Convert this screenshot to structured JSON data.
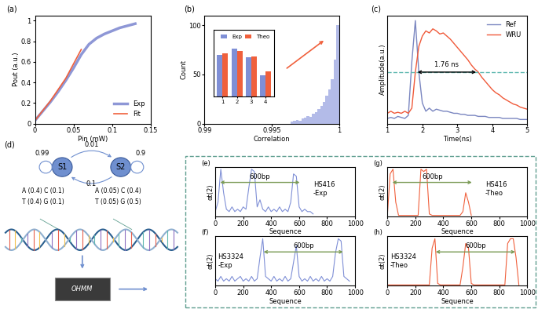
{
  "chart_data": [
    {
      "panel": "(a)",
      "type": "line",
      "xlabel": "Pin (mW)",
      "ylabel": "Pout (a.u.)",
      "xlim": [
        0,
        0.15
      ],
      "xticks": [
        0,
        0.05,
        0.1,
        0.15
      ],
      "ylim": [
        0,
        1.05
      ],
      "yticks": [
        0,
        0.2,
        0.4,
        0.6,
        0.8,
        1
      ],
      "legend": "lower right",
      "series": [
        {
          "name": "Exp",
          "color": "#8e97d6",
          "x": [
            0,
            0.01,
            0.02,
            0.03,
            0.04,
            0.05,
            0.06,
            0.07,
            0.08,
            0.09,
            0.1,
            0.11,
            0.12,
            0.13
          ],
          "values": [
            0.03,
            0.12,
            0.21,
            0.31,
            0.42,
            0.54,
            0.67,
            0.77,
            0.83,
            0.87,
            0.9,
            0.93,
            0.95,
            0.97
          ]
        },
        {
          "name": "Fit",
          "color": "#f0603c",
          "x": [
            0,
            0.02,
            0.04,
            0.06
          ],
          "values": [
            0.03,
            0.22,
            0.44,
            0.72
          ]
        }
      ]
    },
    {
      "panel": "(b)",
      "type": "histogram",
      "xlabel": "Correlation",
      "ylabel": "Count",
      "color": "#b3bbe8",
      "xlim": [
        0.99,
        1
      ],
      "xticks": [
        0.99,
        0.995,
        1
      ],
      "ylim": [
        0,
        110
      ],
      "yticks": [
        0,
        50,
        100
      ],
      "bins": [
        0.9964,
        0.9966,
        0.9968,
        0.997,
        0.9972,
        0.9974,
        0.9976,
        0.9978,
        0.998,
        0.9982,
        0.9984,
        0.9986,
        0.9988,
        0.999,
        0.9992,
        0.9994,
        0.9996,
        0.9998,
        1.0
      ],
      "counts": [
        2,
        3,
        4,
        3,
        5,
        6,
        8,
        7,
        10,
        12,
        15,
        18,
        22,
        28,
        35,
        45,
        65,
        100
      ],
      "inset": {
        "type": "bar",
        "categories": [
          "1",
          "2",
          "3",
          "4"
        ],
        "ylim": [
          0,
          1
        ],
        "tick_labels": "x",
        "legend": "upper right",
        "series": [
          {
            "name": "Exp",
            "color": "#7f8fd6",
            "values": [
              0.62,
              0.72,
              0.59,
              0.32
            ]
          },
          {
            "name": "Theo",
            "color": "#f0603c",
            "values": [
              0.65,
              0.68,
              0.6,
              0.38
            ]
          }
        ]
      }
    },
    {
      "panel": "(c)",
      "type": "line",
      "xlabel": "Time(ns)",
      "ylabel": "Amplitude(a.u.)",
      "xlim": [
        1,
        5
      ],
      "xticks": [
        1,
        2,
        3,
        4,
        5
      ],
      "ylim": [
        0,
        1.05
      ],
      "tick_labels": "x",
      "legend": "upper right",
      "threshold": 0.5,
      "threshold_color": "#5fb8b0",
      "annotation": "1.76 ns",
      "x": [
        1.0,
        1.1,
        1.2,
        1.3,
        1.4,
        1.5,
        1.6,
        1.7,
        1.8,
        1.9,
        2.0,
        2.1,
        2.2,
        2.3,
        2.4,
        2.5,
        2.6,
        2.7,
        2.8,
        2.9,
        3.0,
        3.1,
        3.2,
        3.3,
        3.4,
        3.5,
        3.6,
        3.7,
        3.8,
        3.9,
        4.0,
        4.1,
        4.2,
        4.3,
        4.4,
        4.5,
        4.6,
        4.7,
        4.8,
        4.9,
        5.0
      ],
      "series": [
        {
          "name": "Ref",
          "color": "#7a86c0",
          "values": [
            0.05,
            0.06,
            0.05,
            0.07,
            0.06,
            0.05,
            0.08,
            0.6,
            1.0,
            0.5,
            0.2,
            0.12,
            0.15,
            0.12,
            0.14,
            0.13,
            0.12,
            0.12,
            0.11,
            0.1,
            0.1,
            0.09,
            0.09,
            0.08,
            0.08,
            0.08,
            0.07,
            0.07,
            0.07,
            0.06,
            0.06,
            0.06,
            0.06,
            0.05,
            0.05,
            0.05,
            0.05,
            0.05,
            0.04,
            0.04,
            0.04
          ]
        },
        {
          "name": "WRU",
          "color": "#f05a3a",
          "values": [
            0.1,
            0.12,
            0.1,
            0.11,
            0.1,
            0.12,
            0.1,
            0.15,
            0.5,
            0.75,
            0.85,
            0.9,
            0.88,
            0.92,
            0.9,
            0.87,
            0.88,
            0.85,
            0.82,
            0.78,
            0.74,
            0.7,
            0.66,
            0.62,
            0.57,
            0.53,
            0.5,
            0.45,
            0.41,
            0.37,
            0.33,
            0.3,
            0.28,
            0.25,
            0.23,
            0.21,
            0.19,
            0.18,
            0.16,
            0.15,
            0.14
          ]
        }
      ]
    },
    {
      "panel": "(e)",
      "type": "line",
      "label": "HS416\n-Exp",
      "span_label": "600bp",
      "span": [
        20,
        620
      ],
      "color": "#7f8fd6",
      "xlabel": "Sequence",
      "ylabel": "αt(2)",
      "xlim": [
        0,
        1000
      ],
      "xticks": [
        0,
        200,
        400,
        600,
        800,
        1000
      ],
      "ylim": [
        0,
        1.05
      ],
      "tick_labels": "x",
      "x": [
        0,
        20,
        40,
        60,
        80,
        100,
        120,
        140,
        160,
        180,
        200,
        220,
        240,
        260,
        280,
        300,
        320,
        340,
        360,
        380,
        400,
        420,
        440,
        460,
        480,
        500,
        520,
        540,
        560,
        580,
        600,
        620,
        640,
        660,
        680,
        700
      ],
      "values": [
        0.1,
        0.3,
        1.0,
        0.5,
        0.15,
        0.1,
        0.2,
        0.1,
        0.15,
        0.1,
        0.2,
        0.15,
        0.6,
        1.0,
        0.95,
        0.2,
        0.35,
        0.15,
        0.1,
        0.2,
        0.1,
        0.15,
        0.1,
        0.2,
        0.1,
        0.15,
        0.1,
        0.3,
        0.9,
        0.85,
        0.2,
        0.1,
        0.15,
        0.1,
        0.1,
        0.05
      ]
    },
    {
      "panel": "(f)",
      "type": "line",
      "label": "HS3324\n-Exp",
      "span_label": "600bp",
      "span": [
        330,
        930
      ],
      "color": "#7f8fd6",
      "xlabel": "Sequence",
      "ylabel": "αt(2)",
      "xlim": [
        0,
        1000
      ],
      "xticks": [
        0,
        200,
        400,
        600,
        800,
        1000
      ],
      "ylim": [
        0,
        1.05
      ],
      "tick_labels": "x",
      "x": [
        0,
        20,
        40,
        60,
        80,
        100,
        120,
        140,
        160,
        180,
        200,
        220,
        240,
        260,
        280,
        300,
        320,
        340,
        360,
        380,
        400,
        420,
        440,
        460,
        480,
        500,
        520,
        540,
        560,
        580,
        600,
        620,
        640,
        660,
        680,
        700,
        720,
        740,
        760,
        780,
        800,
        820,
        840,
        860,
        880,
        900,
        920,
        940,
        960
      ],
      "values": [
        0.15,
        0.1,
        0.2,
        0.1,
        0.15,
        0.1,
        0.2,
        0.1,
        0.15,
        0.2,
        0.1,
        0.15,
        0.1,
        0.2,
        0.1,
        0.15,
        0.6,
        1.0,
        0.2,
        0.15,
        0.1,
        0.2,
        0.1,
        0.15,
        0.1,
        0.2,
        0.1,
        0.15,
        0.5,
        0.85,
        0.2,
        0.1,
        0.15,
        0.1,
        0.2,
        0.1,
        0.15,
        0.1,
        0.2,
        0.1,
        0.15,
        0.1,
        0.2,
        0.7,
        1.0,
        0.95,
        0.2,
        0.15,
        0.1
      ]
    },
    {
      "panel": "(g)",
      "type": "line",
      "label": "HS416\n-Theo",
      "span_label": "600bp",
      "span": [
        20,
        620
      ],
      "color": "#f0603c",
      "xlabel": "Sequence",
      "ylabel": "αt(2)",
      "xlim": [
        0,
        1000
      ],
      "xticks": [
        0,
        200,
        400,
        600,
        800,
        1000
      ],
      "ylim": [
        0,
        1.05
      ],
      "tick_labels": "x",
      "x": [
        0,
        20,
        40,
        60,
        80,
        100,
        120,
        140,
        160,
        180,
        200,
        220,
        240,
        260,
        280,
        300,
        320,
        340,
        360,
        380,
        400,
        420,
        440,
        460,
        480,
        500,
        520,
        540,
        560,
        580,
        600
      ],
      "values": [
        0.02,
        0.9,
        1.0,
        0.3,
        0.02,
        0.02,
        0.02,
        0.02,
        0.02,
        0.02,
        0.02,
        0.02,
        1.0,
        0.95,
        1.0,
        0.05,
        0.02,
        0.02,
        0.02,
        0.02,
        0.02,
        0.02,
        0.02,
        0.02,
        0.02,
        0.02,
        0.02,
        0.1,
        0.5,
        0.3,
        0.02
      ]
    },
    {
      "panel": "(h)",
      "type": "line",
      "label": "HS3324\n-Theo",
      "span_label": "600bp",
      "span": [
        330,
        930
      ],
      "color": "#f0603c",
      "xlabel": "Sequence",
      "ylabel": "αt(2)",
      "xlim": [
        0,
        1000
      ],
      "xticks": [
        0,
        200,
        400,
        600,
        800,
        1000
      ],
      "ylim": [
        0,
        1.05
      ],
      "tick_labels": "x",
      "x": [
        0,
        20,
        40,
        60,
        80,
        100,
        120,
        140,
        160,
        180,
        200,
        220,
        240,
        260,
        280,
        300,
        320,
        340,
        360,
        380,
        400,
        420,
        440,
        460,
        480,
        500,
        520,
        540,
        560,
        580,
        600,
        620,
        640,
        660,
        680,
        700,
        720,
        740,
        760,
        780,
        800,
        820,
        840,
        860,
        880,
        900,
        920,
        940
      ],
      "values": [
        0.02,
        0.02,
        0.02,
        0.02,
        0.02,
        0.02,
        0.02,
        0.02,
        0.02,
        0.02,
        0.02,
        0.02,
        0.02,
        0.02,
        0.02,
        0.02,
        0.8,
        1.0,
        0.05,
        0.02,
        0.02,
        0.02,
        0.02,
        0.02,
        0.02,
        0.02,
        0.02,
        0.4,
        0.9,
        0.8,
        0.05,
        0.02,
        0.02,
        0.02,
        0.02,
        0.02,
        0.02,
        0.02,
        0.02,
        0.02,
        0.02,
        0.02,
        0.02,
        0.9,
        1.0,
        1.0,
        0.6,
        0.02
      ]
    }
  ],
  "diagram": {
    "panel": "(d)",
    "states": [
      {
        "label": "S1",
        "self": 0.99,
        "emissions": [
          "A (0.4) C (0.1)",
          "T (0.4) G (0.1)"
        ]
      },
      {
        "label": "S2",
        "self": 0.9,
        "emissions": [
          "A (0.05) C (0.4)",
          "T (0.05) G (0.5)"
        ]
      }
    ],
    "s1_to_s2": 0.01,
    "s2_to_s1": 0.1,
    "chip": "OHMM"
  }
}
